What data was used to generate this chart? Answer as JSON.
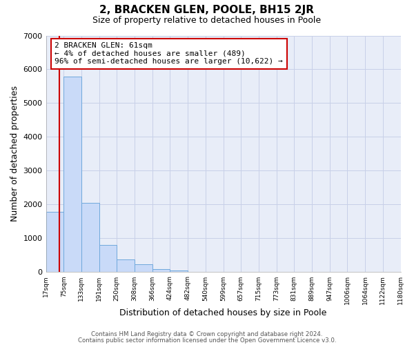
{
  "title": "2, BRACKEN GLEN, POOLE, BH15 2JR",
  "subtitle": "Size of property relative to detached houses in Poole",
  "xlabel": "Distribution of detached houses by size in Poole",
  "ylabel": "Number of detached properties",
  "bar_values": [
    1780,
    5780,
    2060,
    800,
    370,
    230,
    100,
    60,
    0,
    0,
    0,
    0,
    0,
    0,
    0,
    0,
    0,
    0,
    0,
    0
  ],
  "bar_labels": [
    "17sqm",
    "75sqm",
    "133sqm",
    "191sqm",
    "250sqm",
    "308sqm",
    "366sqm",
    "424sqm",
    "482sqm",
    "540sqm",
    "599sqm",
    "657sqm",
    "715sqm",
    "773sqm",
    "831sqm",
    "889sqm",
    "947sqm",
    "1006sqm",
    "1064sqm",
    "1122sqm",
    "1180sqm"
  ],
  "ylim": [
    0,
    7000
  ],
  "yticks": [
    0,
    1000,
    2000,
    3000,
    4000,
    5000,
    6000,
    7000
  ],
  "bar_color": "#c9daf8",
  "bar_edge_color": "#6fa8dc",
  "property_line_bin": 0.65,
  "property_line_color": "#cc0000",
  "annotation_text": "2 BRACKEN GLEN: 61sqm\n← 4% of detached houses are smaller (489)\n96% of semi-detached houses are larger (10,622) →",
  "annotation_box_color": "#ffffff",
  "annotation_box_edge_color": "#cc0000",
  "footer_line1": "Contains HM Land Registry data © Crown copyright and database right 2024.",
  "footer_line2": "Contains public sector information licensed under the Open Government Licence v3.0.",
  "background_color": "#ffffff",
  "plot_bg_color": "#e8edf8",
  "grid_color": "#c8d0e8"
}
